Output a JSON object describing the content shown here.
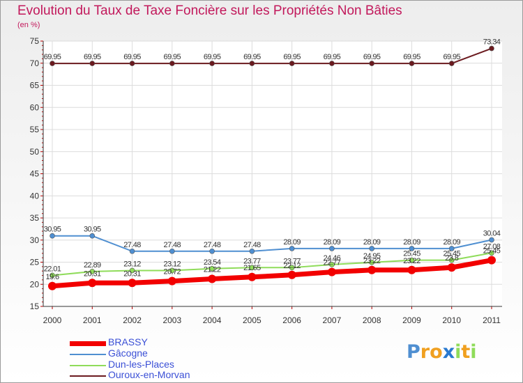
{
  "chart_data": {
    "type": "line",
    "title": "Evolution du Taux de Taxe Foncière sur les Propriétés Non Bâties",
    "unit_label": "(en %)",
    "xlabel": "",
    "ylabel": "(en %)",
    "ylim": [
      15,
      75
    ],
    "y_ticks": [
      15,
      20,
      25,
      30,
      35,
      40,
      45,
      50,
      55,
      60,
      65,
      70,
      75
    ],
    "categories": [
      "2000",
      "2001",
      "2002",
      "2003",
      "2004",
      "2005",
      "2006",
      "2007",
      "2008",
      "2009",
      "2010",
      "2011"
    ],
    "series": [
      {
        "name": "Ouroux-en-Morvan",
        "color": "#6b1a1f",
        "values": [
          69.95,
          69.95,
          69.95,
          69.95,
          69.95,
          69.95,
          69.95,
          69.95,
          69.95,
          69.95,
          69.95,
          73.34
        ],
        "labels": [
          "69.95",
          "69.95",
          "69.95",
          "69.95",
          "69.95",
          "69.95",
          "69.95",
          "69.95",
          "69.95",
          "69.95",
          "69.95",
          "73.34"
        ]
      },
      {
        "name": "Gâcogne",
        "color": "#4f8fd1",
        "values": [
          30.95,
          30.95,
          27.48,
          27.48,
          27.48,
          27.48,
          28.09,
          28.09,
          28.09,
          28.09,
          28.09,
          30.04
        ],
        "labels": [
          "30.95",
          "30.95",
          "27.48",
          "27.48",
          "27.48",
          "27.48",
          "28.09",
          "28.09",
          "28.09",
          "28.09",
          "28.09",
          "30.04"
        ]
      },
      {
        "name": "Dun-les-Places",
        "color": "#8fdc5a",
        "values": [
          22.01,
          22.89,
          23.12,
          23.12,
          23.54,
          23.77,
          23.77,
          24.46,
          24.95,
          25.45,
          25.45,
          27.08
        ],
        "labels": [
          "22.01",
          "22.89",
          "23.12",
          "23.12",
          "23.54",
          "23.77",
          "23.77",
          "24.46",
          "24.95",
          "25.45",
          "25.45",
          "27.08"
        ]
      },
      {
        "name": "BRASSY",
        "color": "#f20000",
        "values": [
          19.6,
          20.31,
          20.31,
          20.72,
          21.22,
          21.65,
          22.12,
          22.77,
          23.22,
          23.22,
          23.8,
          25.45
        ],
        "labels": [
          "19.6",
          "20.31",
          "20.31",
          "20.72",
          "21.22",
          "21.65",
          "22.12",
          "22.77",
          "23.22",
          "23.22",
          "23.8",
          "25.45"
        ]
      }
    ],
    "legend_position": "bottom-left",
    "legend_order": [
      "BRASSY",
      "Gâcogne",
      "Dun-les-Places",
      "Ouroux-en-Morvan"
    ]
  },
  "legend": {
    "brassy": "BRASSY",
    "gacogne": "Gâcogne",
    "dun": "Dun-les-Places",
    "ouroux": "Ouroux-en-Morvan",
    "text_color": "#3a4fd6"
  },
  "logo": {
    "text": "Proxiti"
  }
}
